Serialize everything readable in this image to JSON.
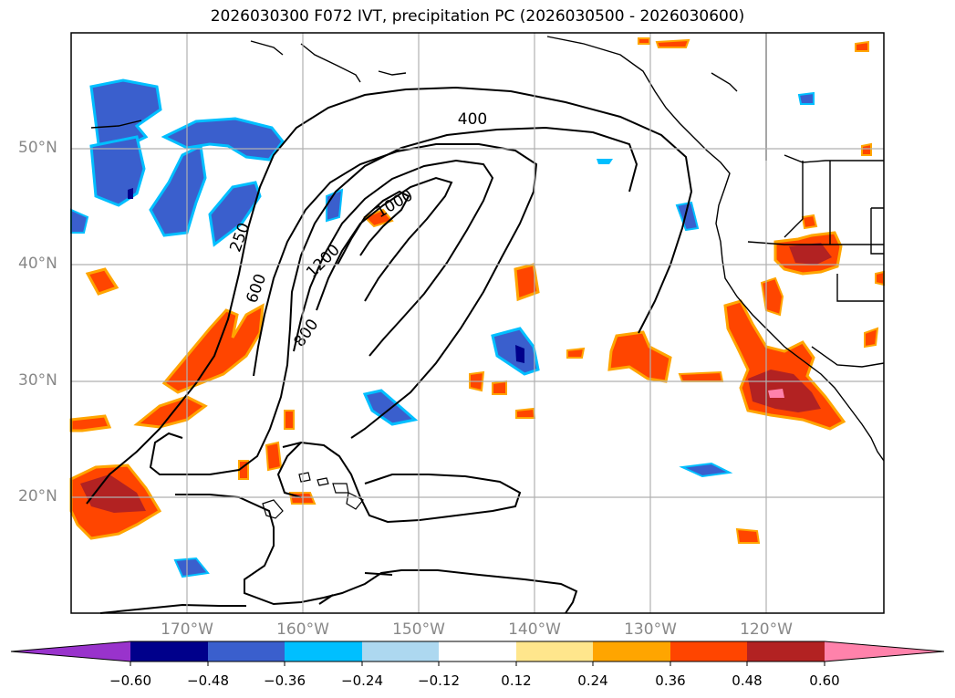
{
  "title": "2026030300 F072 IVT, precipitation PC (2026030500 - 2026030600)",
  "map": {
    "lat_labels": [
      "50°N",
      "40°N",
      "30°N",
      "20°N"
    ],
    "lon_labels": [
      "170°W",
      "160°W",
      "150°W",
      "140°W",
      "130°W",
      "120°W"
    ],
    "contour_labels": [
      "250",
      "400",
      "600",
      "800",
      "1000",
      "1200"
    ]
  },
  "colorbar": {
    "ticks": [
      "−0.60",
      "−0.48",
      "−0.36",
      "−0.24",
      "−0.12",
      "0.12",
      "0.24",
      "0.36",
      "0.48",
      "0.60"
    ],
    "colors": [
      "#9933cc",
      "#00008b",
      "#3a5fcd",
      "#00bfff",
      "#add8f0",
      "#ffffff",
      "#ffe68c",
      "#ffa500",
      "#ff4500",
      "#b22222",
      "#ff82ab"
    ]
  }
}
